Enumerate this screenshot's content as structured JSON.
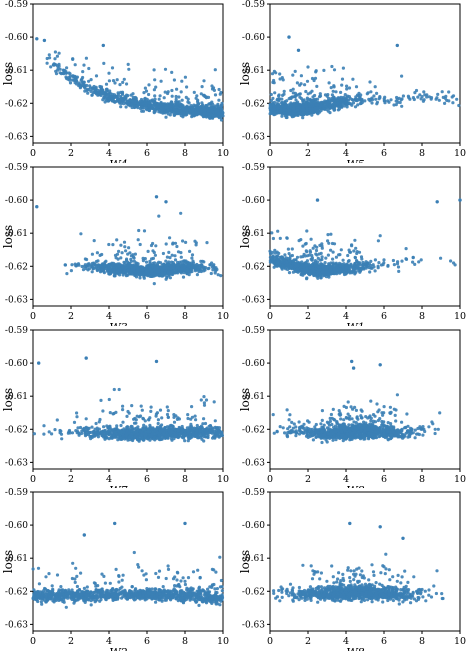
{
  "chart_data": [
    {
      "type": "scatter",
      "ylabel": "loss",
      "xlabel": "W4",
      "xlim": [
        0,
        10
      ],
      "ylim": [
        -0.632,
        -0.59
      ],
      "xticks": [
        "0",
        "2",
        "4",
        "6",
        "8",
        "10"
      ],
      "yticks": [
        "-0.59",
        "-0.60",
        "-0.61",
        "-0.62",
        "-0.63"
      ],
      "trend": [
        [
          0,
          -0.6045
        ],
        [
          1,
          -0.608
        ],
        [
          2,
          -0.6125
        ],
        [
          3,
          -0.6155
        ],
        [
          4,
          -0.618
        ],
        [
          5,
          -0.6195
        ],
        [
          6,
          -0.6205
        ],
        [
          7,
          -0.6215
        ],
        [
          8,
          -0.622
        ],
        [
          9,
          -0.6225
        ],
        [
          10,
          -0.6227
        ]
      ],
      "density": "increasing",
      "cluster_center": 9.0,
      "outliers": [
        [
          0.2,
          -0.6005
        ],
        [
          3.7,
          -0.6025
        ],
        [
          0.6,
          -0.601
        ]
      ]
    },
    {
      "type": "scatter",
      "ylabel": "loss",
      "xlabel": "W5",
      "xlim": [
        0,
        10
      ],
      "ylim": [
        -0.632,
        -0.59
      ],
      "xticks": [
        "0",
        "2",
        "4",
        "6",
        "8",
        "10"
      ],
      "yticks": [
        "-0.59",
        "-0.60",
        "-0.61",
        "-0.62",
        "-0.63"
      ],
      "trend": [
        [
          0,
          -0.6215
        ],
        [
          1,
          -0.622
        ],
        [
          2,
          -0.6215
        ],
        [
          3,
          -0.6205
        ],
        [
          4,
          -0.6195
        ],
        [
          5,
          -0.619
        ],
        [
          6,
          -0.619
        ],
        [
          7,
          -0.6185
        ],
        [
          8,
          -0.6182
        ],
        [
          9,
          -0.6185
        ],
        [
          10,
          -0.6188
        ]
      ],
      "density": "left",
      "cluster_center": 1.5,
      "outliers": [
        [
          1.0,
          -0.6
        ],
        [
          6.7,
          -0.6025
        ],
        [
          1.5,
          -0.604
        ]
      ]
    },
    {
      "type": "scatter",
      "ylabel": "loss",
      "xlabel": "W3",
      "xlim": [
        0,
        10
      ],
      "ylim": [
        -0.632,
        -0.59
      ],
      "xticks": [
        "0",
        "2",
        "4",
        "6",
        "8",
        "10"
      ],
      "yticks": [
        "-0.59",
        "-0.60",
        "-0.61",
        "-0.62",
        "-0.63"
      ],
      "trend": [
        [
          0,
          -0.616
        ],
        [
          1,
          -0.6185
        ],
        [
          2,
          -0.6195
        ],
        [
          3,
          -0.62
        ],
        [
          4,
          -0.6205
        ],
        [
          5,
          -0.621
        ],
        [
          6,
          -0.6215
        ],
        [
          7,
          -0.6212
        ],
        [
          8,
          -0.6205
        ],
        [
          9,
          -0.6205
        ],
        [
          10,
          -0.621
        ]
      ],
      "density": "center",
      "cluster_center": 6.2,
      "outliers": [
        [
          6.5,
          -0.599
        ],
        [
          0.2,
          -0.602
        ],
        [
          7.0,
          -0.6005
        ]
      ]
    },
    {
      "type": "scatter",
      "ylabel": "loss",
      "xlabel": "W1",
      "xlim": [
        0,
        10
      ],
      "ylim": [
        -0.632,
        -0.59
      ],
      "xticks": [
        "0",
        "2",
        "4",
        "6",
        "8",
        "10"
      ],
      "yticks": [
        "-0.59",
        "-0.60",
        "-0.61",
        "-0.62",
        "-0.63"
      ],
      "trend": [
        [
          0,
          -0.6175
        ],
        [
          1,
          -0.6195
        ],
        [
          2,
          -0.621
        ],
        [
          3,
          -0.6212
        ],
        [
          4,
          -0.6205
        ],
        [
          5,
          -0.62
        ],
        [
          6,
          -0.6195
        ],
        [
          7,
          -0.619
        ],
        [
          8,
          -0.6185
        ],
        [
          9,
          -0.619
        ],
        [
          10,
          -0.6195
        ]
      ],
      "density": "left",
      "cluster_center": 2.3,
      "outliers": [
        [
          2.5,
          -0.6
        ],
        [
          8.8,
          -0.6005
        ],
        [
          10.0,
          -0.6
        ]
      ]
    },
    {
      "type": "scatter",
      "ylabel": "loss",
      "xlabel": "W7",
      "xlim": [
        0,
        10
      ],
      "ylim": [
        -0.632,
        -0.59
      ],
      "xticks": [
        "0",
        "2",
        "4",
        "6",
        "8",
        "10"
      ],
      "yticks": [
        "-0.59",
        "-0.60",
        "-0.61",
        "-0.62",
        "-0.63"
      ],
      "trend": [
        [
          0,
          -0.6215
        ],
        [
          1,
          -0.6205
        ],
        [
          2,
          -0.6205
        ],
        [
          3,
          -0.621
        ],
        [
          4,
          -0.6212
        ],
        [
          5,
          -0.6215
        ],
        [
          6,
          -0.6215
        ],
        [
          7,
          -0.6212
        ],
        [
          8,
          -0.621
        ],
        [
          9,
          -0.621
        ],
        [
          10,
          -0.6212
        ]
      ],
      "density": "center-right",
      "cluster_center": 6.5,
      "outliers": [
        [
          0.3,
          -0.6
        ],
        [
          2.8,
          -0.5985
        ],
        [
          6.5,
          -0.5995
        ]
      ]
    },
    {
      "type": "scatter",
      "ylabel": "loss",
      "xlabel": "W8",
      "xlim": [
        0,
        10
      ],
      "ylim": [
        -0.632,
        -0.59
      ],
      "xticks": [
        "0",
        "2",
        "4",
        "6",
        "8",
        "10"
      ],
      "yticks": [
        "-0.59",
        "-0.60",
        "-0.61",
        "-0.62",
        "-0.63"
      ],
      "trend": [
        [
          0,
          -0.62
        ],
        [
          1,
          -0.6205
        ],
        [
          2,
          -0.621
        ],
        [
          3,
          -0.6212
        ],
        [
          4,
          -0.621
        ],
        [
          5,
          -0.6205
        ],
        [
          6,
          -0.621
        ],
        [
          7,
          -0.6212
        ],
        [
          8,
          -0.6205
        ],
        [
          9,
          -0.6205
        ],
        [
          10,
          -0.621
        ]
      ],
      "density": "center",
      "cluster_center": 4.5,
      "outliers": [
        [
          4.3,
          -0.5995
        ],
        [
          4.4,
          -0.6015
        ],
        [
          5.8,
          -0.6005
        ]
      ]
    },
    {
      "type": "scatter",
      "ylabel": "loss",
      "xlabel": "W2",
      "xlim": [
        0,
        10
      ],
      "ylim": [
        -0.632,
        -0.59
      ],
      "xticks": [
        "0",
        "2",
        "4",
        "6",
        "8",
        "10"
      ],
      "yticks": [
        "-0.59",
        "-0.60",
        "-0.61",
        "-0.62",
        "-0.63"
      ],
      "trend": [
        [
          0,
          -0.6215
        ],
        [
          1,
          -0.6215
        ],
        [
          2,
          -0.6212
        ],
        [
          3,
          -0.6212
        ],
        [
          4,
          -0.621
        ],
        [
          5,
          -0.621
        ],
        [
          6,
          -0.621
        ],
        [
          7,
          -0.6212
        ],
        [
          8,
          -0.6215
        ],
        [
          9,
          -0.6218
        ],
        [
          10,
          -0.622
        ]
      ],
      "density": "uniform",
      "cluster_center": 5.0,
      "outliers": [
        [
          4.3,
          -0.5995
        ],
        [
          8.0,
          -0.5995
        ],
        [
          2.7,
          -0.603
        ]
      ]
    },
    {
      "type": "scatter",
      "ylabel": "loss",
      "xlabel": "W8",
      "xlim": [
        0,
        10
      ],
      "ylim": [
        -0.632,
        -0.59
      ],
      "xticks": [
        "0",
        "2",
        "4",
        "6",
        "8",
        "10"
      ],
      "yticks": [
        "-0.59",
        "-0.60",
        "-0.61",
        "-0.62",
        "-0.63"
      ],
      "trend": [
        [
          0,
          -0.6215
        ],
        [
          1,
          -0.6212
        ],
        [
          2,
          -0.621
        ],
        [
          3,
          -0.621
        ],
        [
          4,
          -0.6205
        ],
        [
          5,
          -0.6205
        ],
        [
          6,
          -0.621
        ],
        [
          7,
          -0.6212
        ],
        [
          8,
          -0.6212
        ],
        [
          9,
          -0.6215
        ],
        [
          10,
          -0.6218
        ]
      ],
      "density": "center",
      "cluster_center": 4.5,
      "outliers": [
        [
          4.2,
          -0.5995
        ],
        [
          5.8,
          -0.6005
        ],
        [
          7.0,
          -0.604
        ]
      ]
    }
  ],
  "colors": {
    "marker": "#3b7fb5",
    "axis": "#000000",
    "background": "#ffffff"
  }
}
